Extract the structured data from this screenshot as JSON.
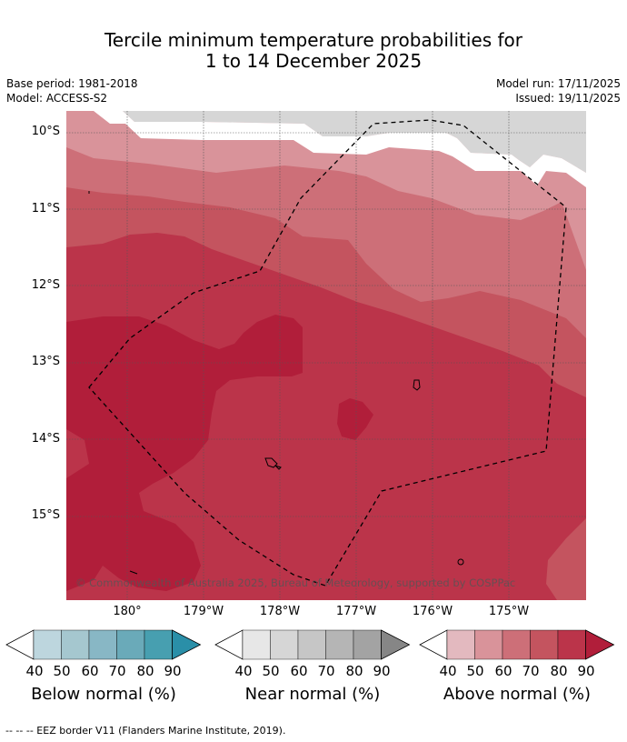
{
  "title_line1": "Tercile minimum temperature probabilities for",
  "title_line2": "1 to 14 December 2025",
  "base_period": "Base period: 1981-2018",
  "model": "Model: ACCESS-S2",
  "model_run": "Model run: 17/11/2025",
  "issued": "Issued: 19/11/2025",
  "lat_labels": [
    "10°S",
    "11°S",
    "12°S",
    "13°S",
    "14°S",
    "15°S"
  ],
  "lon_labels": [
    "180°",
    "179°W",
    "178°W",
    "177°W",
    "176°W",
    "175°W"
  ],
  "copyright": "© Commonwealth of Australia 2025, Bureau of Meteorology, supported by COSPPac",
  "colorbars": [
    {
      "title": "Below normal (%)",
      "ticks": [
        "40",
        "50",
        "60",
        "70",
        "80",
        "90"
      ],
      "colors": [
        "#ffffff",
        "#bdd6de",
        "#a5c7cf",
        "#88b7c5",
        "#6aaab9",
        "#479fb0",
        "#2a8fa8"
      ]
    },
    {
      "title": "Near normal (%)",
      "ticks": [
        "40",
        "50",
        "60",
        "70",
        "80",
        "90"
      ],
      "colors": [
        "#ffffff",
        "#e7e7e7",
        "#d6d6d6",
        "#c6c6c6",
        "#b5b5b5",
        "#a3a3a3",
        "#868686"
      ]
    },
    {
      "title": "Above normal (%)",
      "ticks": [
        "40",
        "50",
        "60",
        "70",
        "80",
        "90"
      ],
      "colors": [
        "#ffffff",
        "#e3b9bf",
        "#d9939a",
        "#cd6f78",
        "#c4545f",
        "#bb344a",
        "#b11e3a"
      ]
    }
  ],
  "footer": "--  --  -- EEZ border V11 (Flanders Marine Institute, 2019)."
}
